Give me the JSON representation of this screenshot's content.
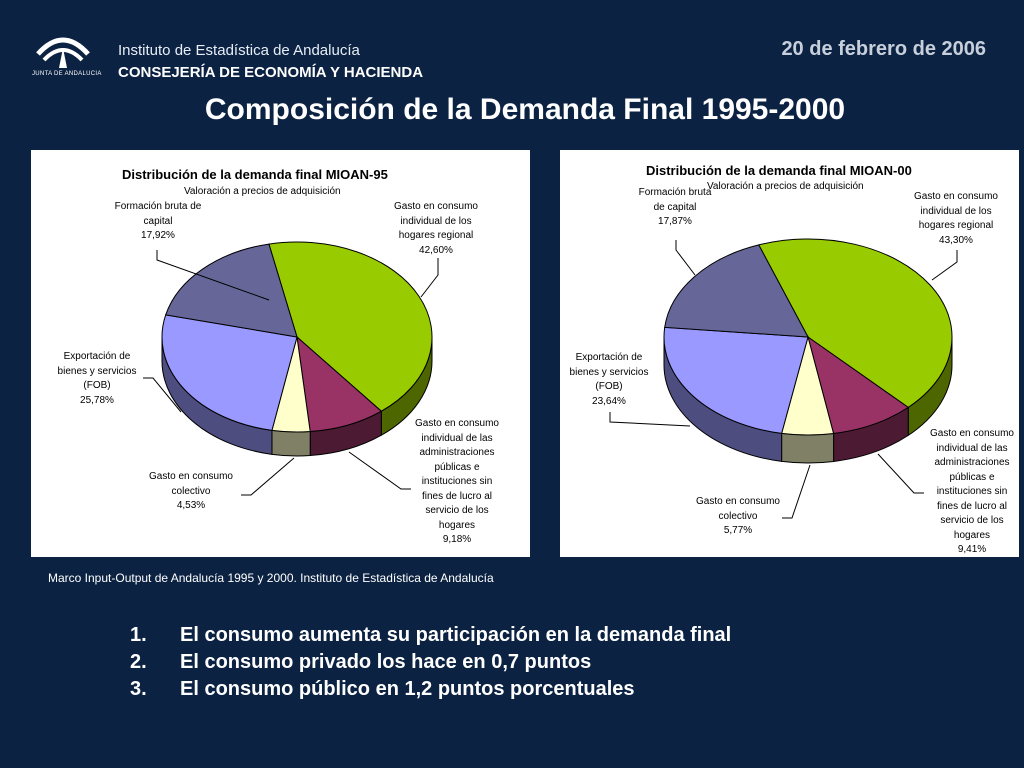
{
  "header": {
    "institute": "Instituto de Estadística de Andalucía",
    "department": "CONSEJERÍA DE ECONOMÍA Y HACIENDA",
    "logo_text": "JUNTA DE ANDALUCIA",
    "date": "20 de febrero de 2006"
  },
  "slide_title": "Composición de la Demanda Final 1995-2000",
  "chart_data": [
    {
      "type": "pie",
      "title": "Distribución de la demanda final MIOAN-95",
      "subtitle": "Valoración a precios de adquisición",
      "slices": [
        {
          "label": "Gasto en consumo individual  de los hogares regional",
          "value": 42.6,
          "value_text": "42,60%",
          "color": "#99cc00",
          "side": "#4d6600"
        },
        {
          "label": "Gasto en consumo individual de las administraciones públicas e instituciones sin fines de lucro al servicio de los hogares",
          "value": 9.18,
          "value_text": "9,18%",
          "color": "#993366",
          "side": "#4d1a33"
        },
        {
          "label": "Gasto en consumo colectivo",
          "value": 4.53,
          "value_text": "4,53%",
          "color": "#ffffcc",
          "side": "#808066"
        },
        {
          "label": "Exportación de bienes y servicios (FOB)",
          "value": 25.78,
          "value_text": "25,78%",
          "color": "#9999ff",
          "side": "#4d4d80"
        },
        {
          "label": "Formación bruta de capital",
          "value": 17.92,
          "value_text": "17,92%",
          "color": "#666699",
          "side": "#33334d"
        }
      ]
    },
    {
      "type": "pie",
      "title": "Distribución de la demanda final MIOAN-00",
      "subtitle": "Valoración a precios de adquisición",
      "slices": [
        {
          "label": "Gasto en consumo individual  de los hogares regional",
          "value": 43.3,
          "value_text": "43,30%",
          "color": "#99cc00",
          "side": "#4d6600"
        },
        {
          "label": "Gasto en consumo individual de las administraciones públicas e instituciones sin fines de lucro al servicio de los hogares",
          "value": 9.41,
          "value_text": "9,41%",
          "color": "#993366",
          "side": "#4d1a33"
        },
        {
          "label": "Gasto en consumo colectivo",
          "value": 5.77,
          "value_text": "5,77%",
          "color": "#ffffcc",
          "side": "#808066"
        },
        {
          "label": "Exportación de bienes y servicios (FOB)",
          "value": 23.64,
          "value_text": "23,64%",
          "color": "#9999ff",
          "side": "#4d4d80"
        },
        {
          "label": "Formación bruta de capital",
          "value": 17.87,
          "value_text": "17,87%",
          "color": "#666699",
          "side": "#33334d"
        }
      ]
    }
  ],
  "source": "Marco Input-Output de Andalucía 1995 y 2000. Instituto de Estadística de Andalucía",
  "points": [
    {
      "num": "1.",
      "text": "El consumo aumenta su participación en la demanda final"
    },
    {
      "num": "2.",
      "text": "El consumo privado los hace en 0,7 puntos"
    },
    {
      "num": "3.",
      "text": "El consumo público en 1,2 puntos porcentuales"
    }
  ]
}
